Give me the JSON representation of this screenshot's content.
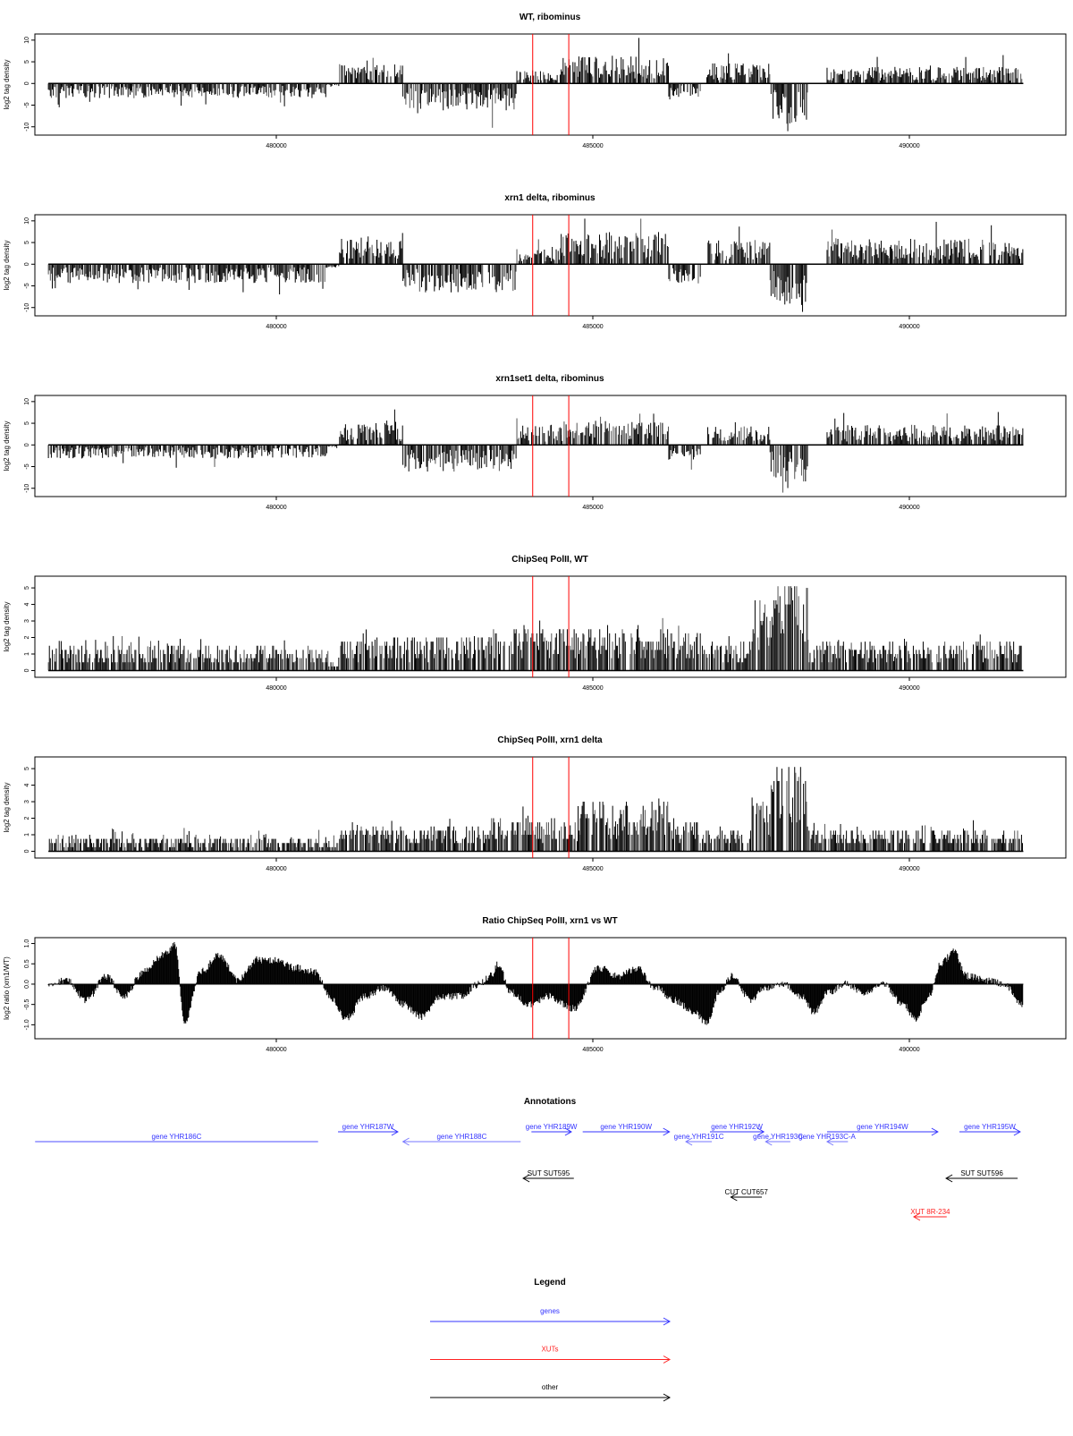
{
  "xaxis": {
    "ticks": [
      480000,
      485000,
      490000
    ],
    "range": [
      476400,
      491800
    ]
  },
  "red_marks": [
    484050,
    484620
  ],
  "chart_data": [
    {
      "type": "bar",
      "title": "WT, ribominus",
      "ylabel": "log2 tag density",
      "ylim": [
        -11.5,
        11
      ],
      "yticks": [
        -10,
        -5,
        0,
        5,
        10
      ],
      "segments": [
        [
          476400,
          480800,
          -2.2
        ],
        [
          480800,
          481000,
          -0.5
        ],
        [
          481000,
          482000,
          3.0
        ],
        [
          482000,
          483800,
          -4.0
        ],
        [
          483800,
          484500,
          2.0
        ],
        [
          484500,
          486200,
          4.2
        ],
        [
          486200,
          486700,
          -2.0
        ],
        [
          486800,
          487800,
          3.0
        ],
        [
          487800,
          488400,
          -6.0
        ],
        [
          488700,
          491800,
          2.5
        ]
      ]
    },
    {
      "type": "bar",
      "title": "xrn1 delta, ribominus",
      "ylabel": "log2 tag density",
      "ylim": [
        -11.5,
        11
      ],
      "yticks": [
        -10,
        -5,
        0,
        5,
        10
      ],
      "segments": [
        [
          476400,
          480800,
          -2.8
        ],
        [
          480800,
          481000,
          -0.5
        ],
        [
          481000,
          482000,
          4.0
        ],
        [
          482000,
          483800,
          -4.2
        ],
        [
          483800,
          484500,
          2.6
        ],
        [
          484500,
          486200,
          4.8
        ],
        [
          486200,
          486700,
          -3.0
        ],
        [
          486800,
          487800,
          3.6
        ],
        [
          487800,
          488400,
          -6.2
        ],
        [
          488700,
          491800,
          3.8
        ]
      ]
    },
    {
      "type": "bar",
      "title": "xrn1set1 delta, ribominus",
      "ylabel": "log2 tag density",
      "ylim": [
        -11.5,
        11
      ],
      "yticks": [
        -10,
        -5,
        0,
        5,
        10
      ],
      "segments": [
        [
          476400,
          480800,
          -2.0
        ],
        [
          480800,
          481000,
          -0.5
        ],
        [
          481000,
          482000,
          3.5
        ],
        [
          482000,
          483800,
          -4.0
        ],
        [
          483800,
          484500,
          3.0
        ],
        [
          484500,
          486200,
          3.6
        ],
        [
          486200,
          486700,
          -2.2
        ],
        [
          486800,
          487800,
          2.8
        ],
        [
          487800,
          488400,
          -5.5
        ],
        [
          488700,
          491800,
          3.0
        ]
      ]
    },
    {
      "type": "bar",
      "title": "ChipSeq PolII, WT",
      "ylabel": "log2 tag density",
      "ylim": [
        -0.3,
        5.6
      ],
      "yticks": [
        0,
        1,
        2,
        3,
        4,
        5
      ],
      "segments": [
        [
          476400,
          480800,
          1.0
        ],
        [
          480800,
          481000,
          0.5
        ],
        [
          481000,
          483400,
          1.4
        ],
        [
          483400,
          486200,
          1.8
        ],
        [
          486200,
          486700,
          1.6
        ],
        [
          486700,
          487500,
          1.2
        ],
        [
          487500,
          487800,
          3.0
        ],
        [
          487800,
          488400,
          4.3
        ],
        [
          488400,
          491800,
          1.2
        ]
      ]
    },
    {
      "type": "bar",
      "title": "ChipSeq PolII, xrn1 delta",
      "ylabel": "log2 tag density",
      "ylim": [
        -0.3,
        5.6
      ],
      "yticks": [
        0,
        1,
        2,
        3,
        4,
        5
      ],
      "segments": [
        [
          476400,
          480800,
          0.6
        ],
        [
          480800,
          481000,
          0.3
        ],
        [
          481000,
          483400,
          1.0
        ],
        [
          483400,
          484800,
          1.4
        ],
        [
          484800,
          486200,
          2.0
        ],
        [
          486200,
          486700,
          1.3
        ],
        [
          486700,
          487500,
          1.0
        ],
        [
          487500,
          487800,
          2.5
        ],
        [
          487800,
          488400,
          3.8
        ],
        [
          488400,
          491800,
          0.9
        ]
      ]
    },
    {
      "type": "area",
      "title": "Ratio ChipSeq PolII, xrn1 vs WT",
      "ylabel": "log2 ratio (xrn1/WT)",
      "ylim": [
        -1.3,
        1.1
      ],
      "yticks": [
        -1.0,
        -0.5,
        0.0,
        0.5,
        1.0
      ],
      "points": [
        [
          476400,
          0
        ],
        [
          476700,
          0.1
        ],
        [
          477000,
          -0.4
        ],
        [
          477300,
          0.2
        ],
        [
          477600,
          -0.3
        ],
        [
          477900,
          0.3
        ],
        [
          478200,
          0.7
        ],
        [
          478400,
          0.95
        ],
        [
          478550,
          -0.95
        ],
        [
          478800,
          0.3
        ],
        [
          479100,
          0.7
        ],
        [
          479400,
          0.1
        ],
        [
          479700,
          0.6
        ],
        [
          480000,
          0.6
        ],
        [
          480300,
          0.4
        ],
        [
          480600,
          0.3
        ],
        [
          480900,
          -0.4
        ],
        [
          481100,
          -0.85
        ],
        [
          481400,
          -0.3
        ],
        [
          481700,
          -0.1
        ],
        [
          482000,
          -0.5
        ],
        [
          482300,
          -0.8
        ],
        [
          482600,
          -0.3
        ],
        [
          482900,
          -0.3
        ],
        [
          483200,
          0.0
        ],
        [
          483400,
          0.2
        ],
        [
          483500,
          0.5
        ],
        [
          483700,
          -0.2
        ],
        [
          484000,
          -0.5
        ],
        [
          484300,
          -0.3
        ],
        [
          484700,
          -0.6
        ],
        [
          485100,
          0.4
        ],
        [
          485400,
          0.2
        ],
        [
          485700,
          0.4
        ],
        [
          486000,
          -0.1
        ],
        [
          486300,
          -0.4
        ],
        [
          486600,
          -0.7
        ],
        [
          486800,
          -0.95
        ],
        [
          487000,
          -0.2
        ],
        [
          487200,
          0.2
        ],
        [
          487500,
          -0.4
        ],
        [
          487700,
          -0.1
        ],
        [
          488000,
          0.0
        ],
        [
          488300,
          -0.3
        ],
        [
          488500,
          -0.7
        ],
        [
          488700,
          -0.2
        ],
        [
          489000,
          0.0
        ],
        [
          489300,
          -0.2
        ],
        [
          489600,
          0.0
        ],
        [
          489900,
          -0.5
        ],
        [
          490100,
          -0.85
        ],
        [
          490300,
          -0.3
        ],
        [
          490500,
          0.5
        ],
        [
          490700,
          0.8
        ],
        [
          490900,
          0.2
        ],
        [
          491200,
          0.1
        ],
        [
          491500,
          0.0
        ],
        [
          491800,
          -0.5
        ]
      ]
    }
  ],
  "annotations": {
    "title": "Annotations",
    "items": [
      {
        "label": "gene YHR186C",
        "start": 476190,
        "end": 480660,
        "dir": "left",
        "row": 2,
        "kind": "gene"
      },
      {
        "label": "gene YHR187W",
        "start": 480975,
        "end": 481920,
        "dir": "right",
        "row": 1,
        "kind": "gene"
      },
      {
        "label": "gene YHR188C",
        "start": 482000,
        "end": 483860,
        "dir": "left",
        "row": 2,
        "kind": "gene"
      },
      {
        "label": "gene YHR189W",
        "start": 484030,
        "end": 484660,
        "dir": "right",
        "row": 1,
        "kind": "gene"
      },
      {
        "label": "gene YHR190W",
        "start": 484840,
        "end": 486210,
        "dir": "right",
        "row": 1,
        "kind": "gene"
      },
      {
        "label": "gene YHR191C",
        "start": 486470,
        "end": 486880,
        "dir": "left",
        "row": 2,
        "kind": "gene"
      },
      {
        "label": "gene YHR192W",
        "start": 486850,
        "end": 487700,
        "dir": "right",
        "row": 1,
        "kind": "gene"
      },
      {
        "label": "gene YHR193C",
        "start": 487730,
        "end": 488120,
        "dir": "left",
        "row": 2,
        "kind": "gene"
      },
      {
        "label": "gene YHR193C-A",
        "start": 488700,
        "end": 489030,
        "dir": "left",
        "row": 2,
        "kind": "gene"
      },
      {
        "label": "gene YHR194W",
        "start": 488700,
        "end": 490450,
        "dir": "right",
        "row": 1,
        "kind": "gene"
      },
      {
        "label": "gene YHR195W",
        "start": 490790,
        "end": 491750,
        "dir": "right",
        "row": 1,
        "kind": "gene"
      },
      {
        "label": "SUT SUT595",
        "start": 483900,
        "end": 484700,
        "dir": "left",
        "row": 3,
        "kind": "other"
      },
      {
        "label": "SUT SUT596",
        "start": 490580,
        "end": 491710,
        "dir": "left",
        "row": 3,
        "kind": "other"
      },
      {
        "label": "CUT CUT657",
        "start": 487180,
        "end": 487670,
        "dir": "left",
        "row": 4,
        "kind": "other"
      },
      {
        "label": "XUT 8R-234",
        "start": 490070,
        "end": 490590,
        "dir": "left",
        "row": 5,
        "kind": "xut"
      }
    ]
  },
  "legend": {
    "title": "Legend",
    "items": [
      {
        "label": "genes",
        "kind": "gene"
      },
      {
        "label": "XUTs",
        "kind": "xut"
      },
      {
        "label": "other",
        "kind": "other"
      }
    ]
  },
  "colors": {
    "gene": "#3333ff",
    "xut": "#ff2222",
    "other": "#000000",
    "mark": "#ff0000",
    "bar": "#000000"
  }
}
